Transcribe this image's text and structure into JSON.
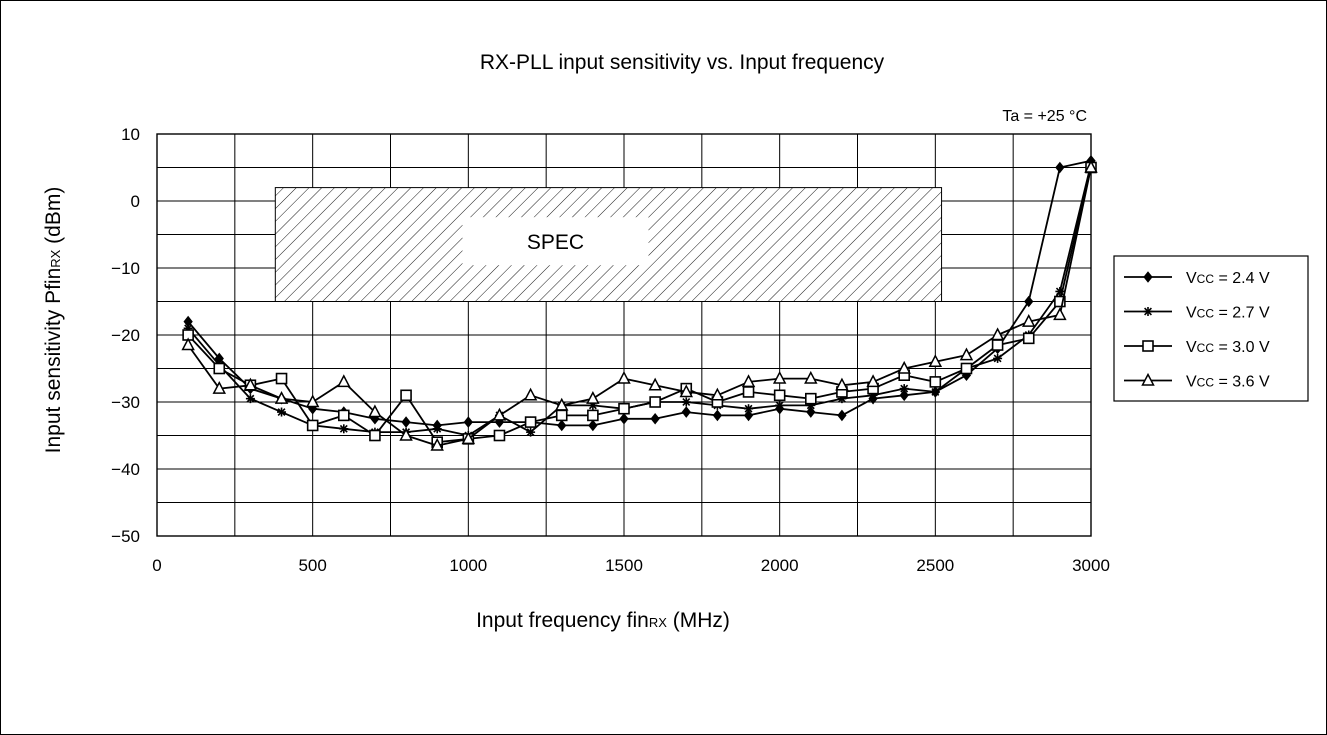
{
  "chart_data": {
    "type": "line",
    "title": "RX-PLL input sensitivity vs. Input frequency",
    "annotation": "Ta = +25 °C",
    "xlabel": {
      "main": "Input frequency fin",
      "sub": "RX",
      "unit": " (MHz)"
    },
    "ylabel": {
      "main": "Input sensitivity Pfin",
      "sub": "RX",
      "unit": " (dBm)"
    },
    "xlim": [
      0,
      3000
    ],
    "ylim": [
      -50,
      10
    ],
    "xticks": [
      0,
      500,
      1000,
      1500,
      2000,
      2500,
      3000
    ],
    "yticks": [
      10,
      0,
      -10,
      -20,
      -30,
      -40,
      -50
    ],
    "xtick_labels": [
      "0",
      "500",
      "1000",
      "1500",
      "2000",
      "2500",
      "3000"
    ],
    "ytick_labels": [
      "10",
      "0",
      "−10",
      "−20",
      "−30",
      "−40",
      "−50"
    ],
    "grid": true,
    "legend_position": "right",
    "spec_region": {
      "label": "SPEC",
      "x": [
        380,
        2520
      ],
      "y": [
        -15,
        2
      ]
    },
    "x": [
      100,
      200,
      300,
      400,
      500,
      600,
      700,
      800,
      900,
      1000,
      1100,
      1200,
      1300,
      1400,
      1500,
      1600,
      1700,
      1800,
      1900,
      2000,
      2100,
      2200,
      2300,
      2400,
      2500,
      2600,
      2700,
      2800,
      2900,
      3000
    ],
    "series": [
      {
        "name": "VCC = 2.4 V",
        "label_main": "V",
        "label_sub": "CC",
        "label_rest": " = 2.4 V",
        "marker": "diamond",
        "values": [
          -18,
          -23.5,
          -28,
          -29.5,
          -31,
          -31.5,
          -32.5,
          -33,
          -33.5,
          -33,
          -33,
          -33,
          -33.5,
          -33.5,
          -32.5,
          -32.5,
          -31.5,
          -32,
          -32,
          -31,
          -31.5,
          -32,
          -29.5,
          -29,
          -28.5,
          -26,
          -22,
          -15,
          5,
          6
        ]
      },
      {
        "name": "VCC = 2.7 V",
        "label_main": "V",
        "label_sub": "CC",
        "label_rest": " = 2.7 V",
        "marker": "asterisk",
        "values": [
          -19,
          -24.5,
          -29.5,
          -31.5,
          -33.5,
          -34,
          -34.5,
          -34.5,
          -34,
          -35,
          -32,
          -34.5,
          -30.5,
          -30.5,
          -31,
          -30,
          -30,
          -30.5,
          -31,
          -30.5,
          -30.5,
          -29.5,
          -29,
          -28,
          -28.5,
          -25,
          -23.5,
          -20,
          -13.5,
          5.5
        ]
      },
      {
        "name": "VCC = 3.0 V",
        "label_main": "V",
        "label_sub": "CC",
        "label_rest": " = 3.0 V",
        "marker": "square",
        "values": [
          -20,
          -25,
          -27.5,
          -26.5,
          -33.5,
          -32,
          -35,
          -29,
          -36,
          -35.5,
          -35,
          -33,
          -32,
          -32,
          -31,
          -30,
          -28,
          -30,
          -28.5,
          -29,
          -29.5,
          -28.5,
          -28,
          -26,
          -27,
          -25,
          -21.5,
          -20.5,
          -15,
          5
        ]
      },
      {
        "name": "VCC = 3.6 V",
        "label_main": "V",
        "label_sub": "CC",
        "label_rest": " = 3.6 V",
        "marker": "triangle",
        "values": [
          -21.5,
          -28,
          -27.5,
          -29.5,
          -30,
          -27,
          -31.5,
          -35,
          -36.5,
          -35.5,
          -32,
          -29,
          -30.5,
          -29.5,
          -26.5,
          -27.5,
          -28.5,
          -29,
          -27,
          -26.5,
          -26.5,
          -27.5,
          -27,
          -25,
          -24,
          -23,
          -20,
          -18,
          -17,
          5
        ]
      }
    ]
  }
}
